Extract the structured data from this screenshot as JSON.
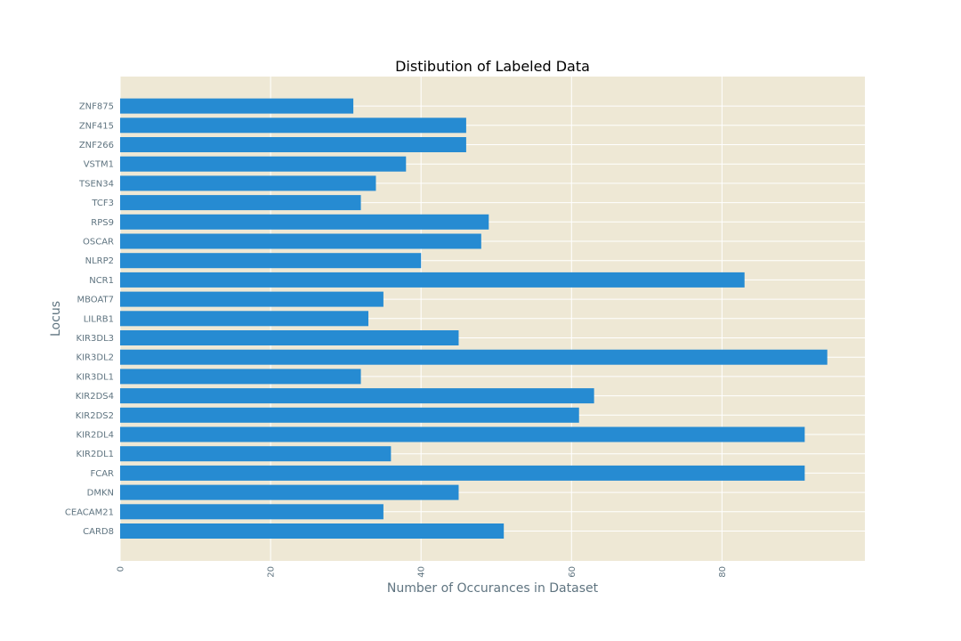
{
  "chart_data": {
    "type": "bar",
    "orientation": "horizontal",
    "title": "Distibution of Labeled Data",
    "xlabel": "Number of Occurances in Dataset",
    "ylabel": "Locus",
    "xlim": [
      0,
      99
    ],
    "xticks": [
      0,
      20,
      40,
      60,
      80
    ],
    "grid": true,
    "categories": [
      "CARD8",
      "CEACAM21",
      "DMKN",
      "FCAR",
      "KIR2DL1",
      "KIR2DL4",
      "KIR2DS2",
      "KIR2DS4",
      "KIR3DL1",
      "KIR3DL2",
      "KIR3DL3",
      "LILRB1",
      "MBOAT7",
      "NCR1",
      "NLRP2",
      "OSCAR",
      "RPS9",
      "TCF3",
      "TSEN34",
      "VSTM1",
      "ZNF266",
      "ZNF415",
      "ZNF875"
    ],
    "values": [
      51,
      35,
      45,
      91,
      36,
      91,
      61,
      63,
      32,
      94,
      45,
      33,
      35,
      83,
      40,
      48,
      49,
      32,
      34,
      38,
      46,
      46,
      31
    ],
    "colors": {
      "bar": "#268bd2",
      "plot_background": "#eee8d5",
      "grid": "#ffffff",
      "tick_text": "#5f7480",
      "title": "#000000"
    }
  }
}
